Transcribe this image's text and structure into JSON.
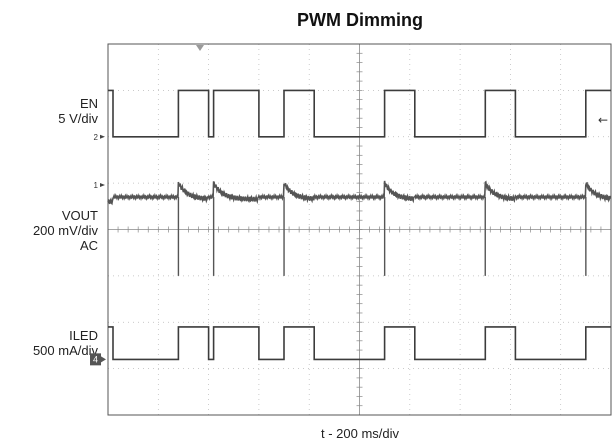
{
  "chart_data": {
    "type": "line",
    "title": "PWM Dimming",
    "xlabel": "t - 200 ms/div",
    "x_divisions": 10,
    "y_divisions": 8,
    "grid": true,
    "time_per_div_ms": 200,
    "pwm": {
      "high_divs": [
        [
          -0.1,
          0.1
        ],
        [
          1.4,
          2.0
        ],
        [
          2.1,
          3.0
        ],
        [
          3.5,
          4.1
        ],
        [
          5.5,
          6.1
        ],
        [
          7.5,
          8.1
        ],
        [
          9.5,
          10.1
        ]
      ]
    },
    "series": [
      {
        "name": "EN",
        "labels": [
          "EN",
          "5 V/div"
        ],
        "marker": "2",
        "levels_div": {
          "high": 7.0,
          "low": 6.0
        },
        "color": "#3c3c3c"
      },
      {
        "name": "VOUT",
        "labels": [
          "VOUT",
          "200 mV/div",
          "AC"
        ],
        "marker": "1",
        "levels_div": {
          "high": 4.7,
          "low": 4.5,
          "spike_bottom": 3.0
        },
        "color": "#555555"
      },
      {
        "name": "ILED",
        "labels": [
          "ILED",
          "500 mA/div"
        ],
        "marker": "4",
        "levels_div": {
          "high": 1.9,
          "low": 1.2
        },
        "color": "#3c3c3c"
      }
    ]
  }
}
